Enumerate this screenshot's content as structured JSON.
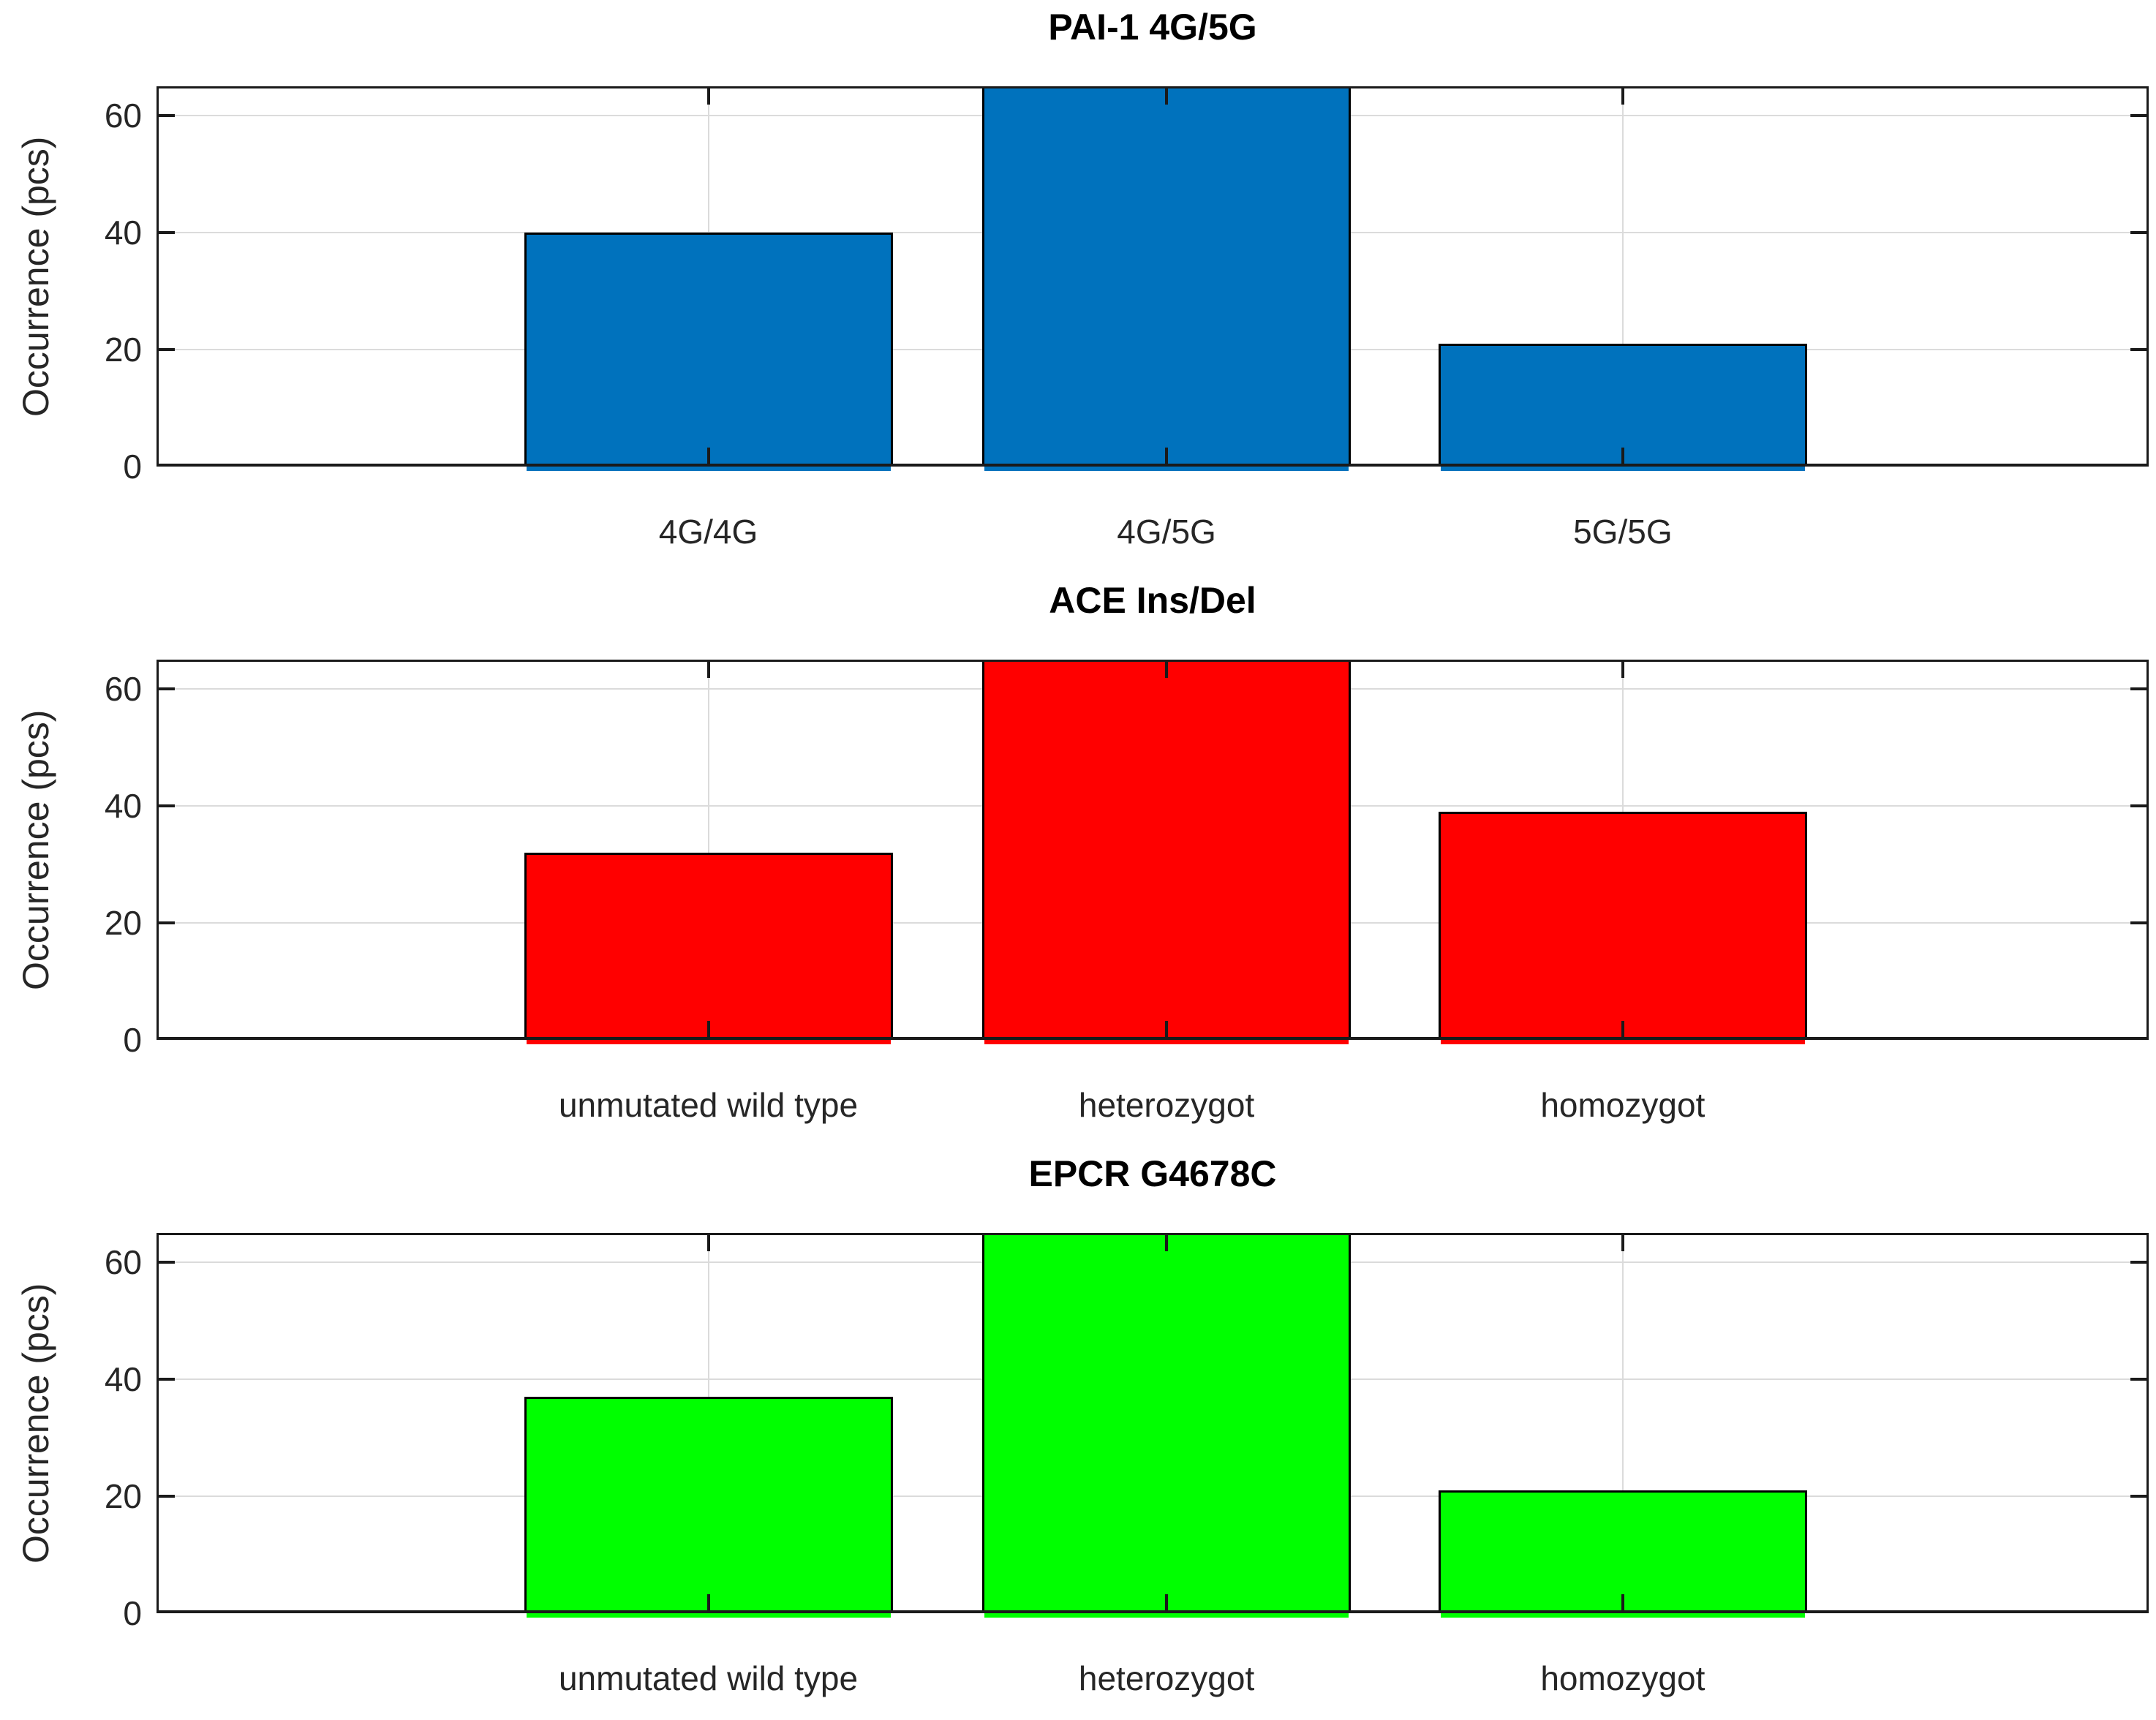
{
  "figure": {
    "background": "#ffffff",
    "note": "middle bar of each subplot is clipped at the top of the axes (value >= 65)"
  },
  "chart_data": [
    {
      "type": "bar",
      "title": "PAI-1 4G/5G",
      "ylabel": "Occurrence (pcs)",
      "xlabel": "",
      "categories": [
        "4G/4G",
        "4G/5G",
        "5G/5G"
      ],
      "values": [
        40,
        65,
        21
      ],
      "clipped": [
        false,
        true,
        false
      ],
      "bar_color": "#0072BD",
      "edge_color": "#000000",
      "yticks": [
        0,
        20,
        40,
        60
      ],
      "ylim": [
        0,
        65
      ],
      "grid": true,
      "legend": "none"
    },
    {
      "type": "bar",
      "title": "ACE Ins/Del",
      "ylabel": "Occurrence (pcs)",
      "xlabel": "",
      "categories": [
        "unmutated wild type",
        "heterozygot",
        "homozygot"
      ],
      "values": [
        32,
        65,
        39
      ],
      "clipped": [
        false,
        true,
        false
      ],
      "bar_color": "#FF0000",
      "edge_color": "#000000",
      "yticks": [
        0,
        20,
        40,
        60
      ],
      "ylim": [
        0,
        65
      ],
      "grid": true,
      "legend": "none"
    },
    {
      "type": "bar",
      "title": "EPCR G4678C",
      "ylabel": "Occurrence (pcs)",
      "xlabel": "",
      "categories": [
        "unmutated wild type",
        "heterozygot",
        "homozygot"
      ],
      "values": [
        37,
        65,
        21
      ],
      "clipped": [
        false,
        true,
        false
      ],
      "bar_color": "#00FF00",
      "edge_color": "#000000",
      "yticks": [
        0,
        20,
        40,
        60
      ],
      "ylim": [
        0,
        65
      ],
      "grid": true,
      "legend": "none"
    }
  ]
}
